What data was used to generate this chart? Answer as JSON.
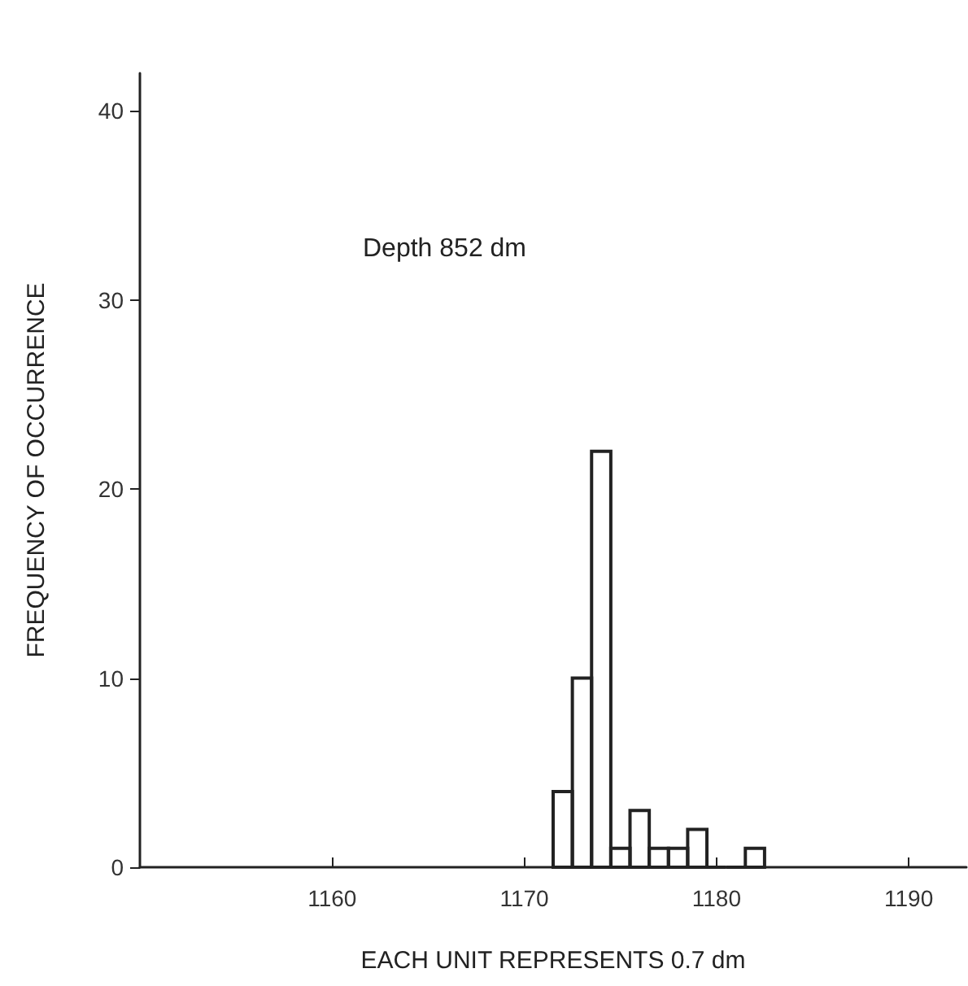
{
  "chart_data": {
    "type": "histogram",
    "title": "Depth 852 dm",
    "xlabel": "EACH UNIT REPRESENTS 0.7 dm",
    "ylabel": "FREQUENCY OF OCCURRENCE",
    "bins": [
      1171.5,
      1172.5,
      1173.5,
      1174.5,
      1175.5,
      1176.5,
      1177.5,
      1178.5,
      1179.5,
      1180.5,
      1181.5,
      1182.5
    ],
    "values": [
      4,
      10,
      22,
      1,
      3,
      1,
      1,
      2,
      0,
      0,
      1
    ],
    "color": "#222222",
    "xlim": [
      1150,
      1193
    ],
    "xticks": [
      1160,
      1170,
      1180,
      1190
    ],
    "ylim": [
      0,
      42
    ],
    "yticks": [
      0,
      10,
      20,
      30,
      40
    ],
    "grid": false
  }
}
